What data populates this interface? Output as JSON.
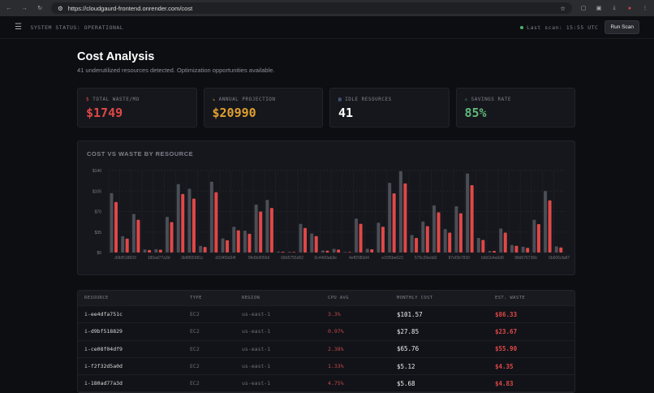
{
  "browser": {
    "url": "https://cloudgaurd-frontend.onrender.com/cost"
  },
  "header": {
    "status": "SYSTEM STATUS: OPERATIONAL",
    "last_scan": "Last scan: 15:55 UTC",
    "run_scan": "Run Scan"
  },
  "page": {
    "title": "Cost Analysis",
    "subtitle": "41 underutilized resources detected. Optimization opportunities available."
  },
  "stats": [
    {
      "icon": "$",
      "label": "TOTAL WASTE/MO",
      "value": "$1749",
      "color": "#e04848"
    },
    {
      "icon": "↘",
      "label": "ANNUAL PROJECTION",
      "value": "$20990",
      "color": "#e0a030"
    },
    {
      "icon": "▤",
      "label": "IDLE RESOURCES",
      "value": "41",
      "color": "#ffffff"
    },
    {
      "icon": "⚠",
      "label": "SAVINGS RATE",
      "value": "85%",
      "color": "#5fb87a"
    }
  ],
  "chart_data": {
    "type": "bar",
    "title": "COST VS WASTE BY RESOURCE",
    "ylim": [
      0,
      140
    ],
    "yticks": [
      "$0",
      "$35",
      "$70",
      "$105",
      "$140"
    ],
    "xtick_labels": [
      "d9bf518829",
      "180ad77a3d",
      "3b8855981c",
      "d334f3d34f",
      "9fe5b9056d",
      "68d5755d52",
      "0c4400ab3e",
      "4eff2983d4",
      "e1f35be623",
      "575c20edd3",
      "87ef3b7830",
      "b9d1b4a6d9",
      "98d676736b",
      "6b606cfa87"
    ],
    "colors": {
      "cost": "#4a4e57",
      "waste": "#e04848"
    },
    "cost": [
      101.57,
      27.85,
      65.76,
      5.12,
      5.68,
      61,
      117,
      109,
      11.4,
      121,
      24,
      44,
      37.5,
      82,
      90,
      1.8,
      1.4,
      49,
      32.5,
      3.7,
      6.4,
      1,
      58,
      6.4,
      51,
      119,
      139,
      30,
      53,
      80.5,
      40,
      79,
      135,
      25,
      2.7,
      41,
      13,
      10,
      56,
      105,
      10.5
    ],
    "waste": [
      86.33,
      23.67,
      55.9,
      4.35,
      4.83,
      52,
      100,
      92,
      9.6,
      103,
      21,
      38,
      32,
      70,
      76,
      1.4,
      1,
      42,
      28,
      3.2,
      5,
      1,
      49,
      5.5,
      44,
      101,
      118,
      25,
      45,
      68.6,
      34,
      67,
      115,
      21.5,
      2.7,
      34,
      11.4,
      8,
      48.5,
      89,
      8.7
    ]
  },
  "table": {
    "headers": [
      "RESOURCE",
      "TYPE",
      "REGION",
      "CPU AVG",
      "MONTHLY COST",
      "EST. WASTE"
    ],
    "rows": [
      [
        "i-ee4dfa751c",
        "EC2",
        "us-east-1",
        "3.3%",
        "$101.57",
        "$86.33"
      ],
      [
        "i-d9bf518829",
        "EC2",
        "us-east-1",
        "0.97%",
        "$27.85",
        "$23.67"
      ],
      [
        "i-ce08f04df9",
        "EC2",
        "us-east-1",
        "2.38%",
        "$65.76",
        "$55.90"
      ],
      [
        "i-f2f32d5a0d",
        "EC2",
        "us-east-1",
        "1.33%",
        "$5.12",
        "$4.35"
      ],
      [
        "i-180ad77a3d",
        "EC2",
        "us-east-1",
        "4.75%",
        "$5.68",
        "$4.83"
      ]
    ]
  }
}
